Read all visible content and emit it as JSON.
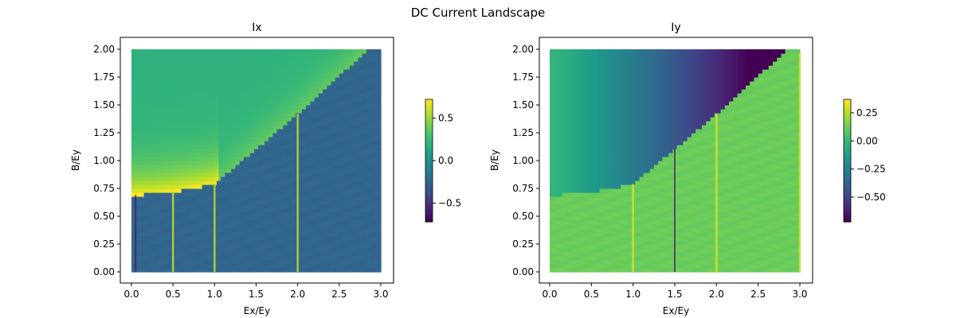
{
  "figure": {
    "suptitle": "DC Current Landscape"
  },
  "chart_data": [
    {
      "type": "heatmap",
      "title": "Ix",
      "xlabel": "Ex/Ey",
      "ylabel": "B/Ey",
      "xlim": [
        0,
        3
      ],
      "ylim": [
        0,
        2
      ],
      "xticks": [
        "0.0",
        "0.5",
        "1.0",
        "1.5",
        "2.0",
        "2.5",
        "3.0"
      ],
      "xtick_values": [
        0,
        0.5,
        1,
        1.5,
        2,
        2.5,
        3
      ],
      "yticks": [
        "0.00",
        "0.25",
        "0.50",
        "0.75",
        "1.00",
        "1.25",
        "1.50",
        "1.75",
        "2.00"
      ],
      "ytick_values": [
        0,
        0.25,
        0.5,
        0.75,
        1,
        1.25,
        1.5,
        1.75,
        2
      ],
      "colormap": "viridis",
      "color_range": [
        -0.72,
        0.72
      ],
      "colorbar_ticks": [
        "0.5",
        "0.0",
        "−0.5"
      ],
      "colorbar_tick_values": [
        0.5,
        0,
        -0.5
      ],
      "regions": {
        "upper_value": 0.2,
        "upper_peak_value": 0.72,
        "lower_value": -0.25,
        "boundary": [
          [
            0,
            0.69
          ],
          [
            0.25,
            0.7
          ],
          [
            0.5,
            0.72
          ],
          [
            0.75,
            0.75
          ],
          [
            1.0,
            0.79
          ],
          [
            2.0,
            1.42
          ],
          [
            2.85,
            2.0
          ]
        ]
      },
      "bright_lines_x": [
        0.5,
        1.0,
        2.0
      ],
      "dark_lines_x": [
        0.05
      ]
    },
    {
      "type": "heatmap",
      "title": "Iy",
      "xlabel": "Ex/Ey",
      "ylabel": "B/Ey",
      "xlim": [
        0,
        3
      ],
      "ylim": [
        0,
        2
      ],
      "xticks": [
        "0.0",
        "0.5",
        "1.0",
        "1.5",
        "2.0",
        "2.5",
        "3.0"
      ],
      "xtick_values": [
        0,
        0.5,
        1,
        1.5,
        2,
        2.5,
        3
      ],
      "yticks": [
        "0.00",
        "0.25",
        "0.50",
        "0.75",
        "1.00",
        "1.25",
        "1.50",
        "1.75",
        "2.00"
      ],
      "ytick_values": [
        0,
        0.25,
        0.5,
        0.75,
        1,
        1.25,
        1.5,
        1.75,
        2
      ],
      "colormap": "viridis",
      "color_range": [
        -0.72,
        0.37
      ],
      "colorbar_ticks": [
        "0.25",
        "0.00",
        "−0.25",
        "−0.50"
      ],
      "colorbar_tick_values": [
        0.25,
        0,
        -0.25,
        -0.5
      ],
      "regions": {
        "upper_value_left": 0.0,
        "upper_value_right": -0.72,
        "lower_value": 0.12,
        "boundary": [
          [
            0,
            0.69
          ],
          [
            0.25,
            0.7
          ],
          [
            0.5,
            0.72
          ],
          [
            0.75,
            0.75
          ],
          [
            1.0,
            0.79
          ],
          [
            2.0,
            1.42
          ],
          [
            2.85,
            2.0
          ]
        ]
      },
      "bright_lines_x": [
        1.0,
        2.0,
        3.0
      ],
      "dark_lines_x": [
        1.5
      ]
    }
  ]
}
